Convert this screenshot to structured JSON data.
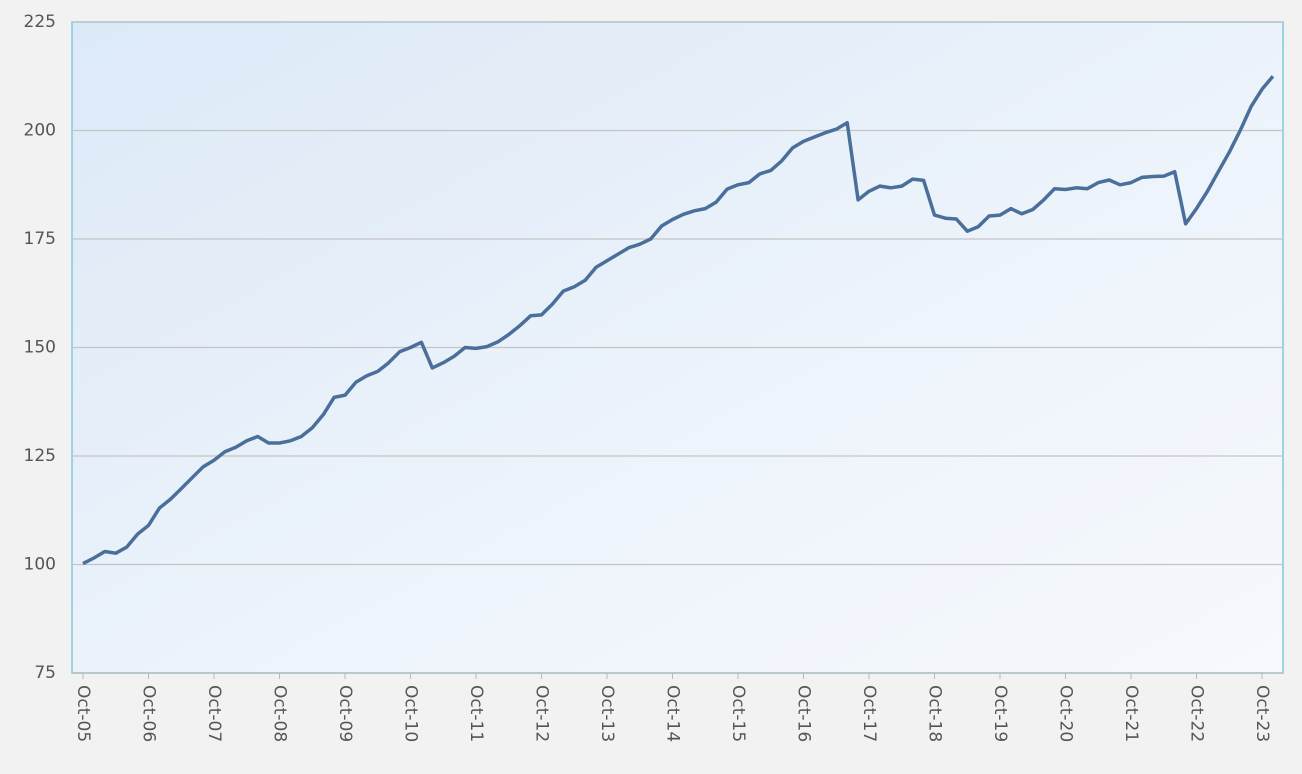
{
  "chart_data": {
    "type": "line",
    "categories": [
      "Oct-05",
      null,
      null,
      null,
      null,
      null,
      "Oct-06",
      null,
      null,
      null,
      null,
      null,
      "Oct-07",
      null,
      null,
      null,
      null,
      null,
      "Oct-08",
      null,
      null,
      null,
      null,
      null,
      "Oct-09",
      null,
      null,
      null,
      null,
      null,
      "Oct-10",
      null,
      null,
      null,
      null,
      null,
      "Oct-11",
      null,
      null,
      null,
      null,
      null,
      "Oct-12",
      null,
      null,
      null,
      null,
      null,
      "Oct-13",
      null,
      null,
      null,
      null,
      null,
      "Oct-14",
      null,
      null,
      null,
      null,
      null,
      "Oct-15",
      null,
      null,
      null,
      null,
      null,
      "Oct-16",
      null,
      null,
      null,
      null,
      null,
      "Oct-17",
      null,
      null,
      null,
      null,
      null,
      "Oct-18",
      null,
      null,
      null,
      null,
      null,
      "Oct-19",
      null,
      null,
      null,
      null,
      null,
      "Oct-20",
      null,
      null,
      null,
      null,
      null,
      "Oct-21",
      null,
      null,
      null,
      null,
      null,
      "Oct-22",
      null,
      null,
      null,
      null,
      null,
      "Oct-23",
      null
    ],
    "values": [
      100.2,
      101.5,
      103,
      102.6,
      104,
      107,
      109,
      113,
      115,
      117.5,
      120,
      122.5,
      124,
      126,
      127,
      128.5,
      129.5,
      128,
      128,
      128.5,
      129.5,
      131.5,
      134.5,
      138.5,
      139,
      142,
      143.5,
      144.5,
      146.5,
      149,
      150,
      151.2,
      145.3,
      146.5,
      148,
      150,
      149.8,
      150.2,
      151.3,
      153,
      155,
      157.3,
      157.5,
      160,
      163,
      164,
      165.5,
      168.5,
      170,
      171.5,
      173,
      173.8,
      175,
      178,
      179.5,
      180.7,
      181.5,
      182,
      183.5,
      186.5,
      187.5,
      188,
      190,
      190.8,
      193,
      196,
      197.5,
      198.5,
      199.5,
      200.3,
      201.8,
      184,
      186,
      187.2,
      186.8,
      187.2,
      188.8,
      188.5,
      180.5,
      179.8,
      179.6,
      176.8,
      177.8,
      180.3,
      180.5,
      182,
      180.8,
      181.8,
      184,
      186.6,
      186.4,
      186.8,
      186.6,
      188,
      188.6,
      187.5,
      188,
      189.2,
      189.4,
      189.5,
      190.5,
      178.5,
      182,
      186,
      190.5,
      195,
      200,
      205.5,
      209.5,
      212.5
    ],
    "color": "#4a6f9a",
    "ylim": [
      75,
      225
    ],
    "yticks": [
      75,
      100,
      125,
      150,
      175,
      200,
      225
    ],
    "grid": true
  }
}
